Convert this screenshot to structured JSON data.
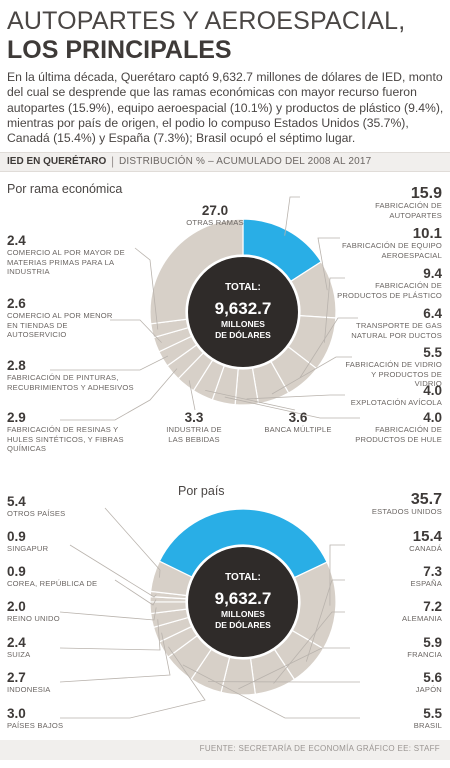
{
  "header": {
    "title_line1": "AUTOPARTES Y AEROESPACIAL,",
    "title_line2": "LOS PRINCIPALES",
    "intro": "En la última década, Querétaro captó 9,632.7 millones de dólares de IED, monto del cual se desprende que las ramas económicas con mayor recurso fueron autopartes (15.9%), equipo aeroespacial (10.1%) y productos de plástico (9.4%), mientras por país de origen, el podio lo compuso Estados Unidos (35.7%), Canadá (15.4%) y España (7.3%); Brasil ocupó el séptimo lugar."
  },
  "subheader": {
    "bold": "IED EN QUERÉTARO",
    "separator": "|",
    "rest": "DISTRIBUCIÓN % – ACUMULADO DEL 2008 AL 2017"
  },
  "colors": {
    "highlight": "#29aee6",
    "ring": "#d7d0c8",
    "center": "#2f2b29",
    "line": "#b9b3ad"
  },
  "chart_data": [
    {
      "type": "pie",
      "title": "Por rama económica",
      "center": {
        "label": "TOTAL:",
        "value": "9,632.7",
        "unit1": "MILLONES",
        "unit2": "DE DÓLARES"
      },
      "slices": [
        {
          "value": "15.9",
          "v": 15.9,
          "label": "FABRICACIÓN DE AUTOPARTES",
          "highlight": true
        },
        {
          "value": "10.1",
          "v": 10.1,
          "label": "FABRICACIÓN DE EQUIPO AEROESPACIAL"
        },
        {
          "value": "9.4",
          "v": 9.4,
          "label": "FABRICACIÓN DE PRODUCTOS DE PLÁSTICO"
        },
        {
          "value": "6.4",
          "v": 6.4,
          "label": "TRANSPORTE DE GAS NATURAL POR DUCTOS"
        },
        {
          "value": "5.5",
          "v": 5.5,
          "label": "FABRICACIÓN DE VIDRIO Y PRODUCTOS DE VIDRIO"
        },
        {
          "value": "4.0",
          "v": 4.0,
          "label": "EXPLOTACIÓN AVÍCOLA"
        },
        {
          "value": "4.0",
          "v": 4.0,
          "label": "FABRICACIÓN DE PRODUCTOS DE HULE"
        },
        {
          "value": "3.6",
          "v": 3.6,
          "label": "BANCA MÚLTIPLE"
        },
        {
          "value": "3.3",
          "v": 3.3,
          "label": "INDUSTRIA DE LAS BEBIDAS"
        },
        {
          "value": "2.9",
          "v": 2.9,
          "label": "FABRICACIÓN DE RESINAS Y HULES SINTÉTICOS, Y FIBRAS QUÍMICAS"
        },
        {
          "value": "2.8",
          "v": 2.8,
          "label": "FABRICACIÓN DE PINTURAS, RECUBRIMIENTOS Y ADHESIVOS"
        },
        {
          "value": "2.6",
          "v": 2.6,
          "label": "COMERCIO AL POR MENOR EN TIENDAS DE AUTOSERVICIO"
        },
        {
          "value": "2.4",
          "v": 2.4,
          "label": "COMERCIO AL POR MAYOR DE MATERIAS PRIMAS PARA LA INDUSTRIA"
        },
        {
          "value": "27.0",
          "v": 27.0,
          "label": "OTRAS RAMAS"
        }
      ]
    },
    {
      "type": "pie",
      "title": "Por país",
      "center": {
        "label": "TOTAL:",
        "value": "9,632.7",
        "unit1": "MILLONES",
        "unit2": "DE DÓLARES"
      },
      "slices": [
        {
          "value": "35.7",
          "v": 35.7,
          "label": "ESTADOS UNIDOS",
          "highlight": true
        },
        {
          "value": "15.4",
          "v": 15.4,
          "label": "CANADÁ"
        },
        {
          "value": "7.3",
          "v": 7.3,
          "label": "ESPAÑA"
        },
        {
          "value": "7.2",
          "v": 7.2,
          "label": "ALEMANIA"
        },
        {
          "value": "5.9",
          "v": 5.9,
          "label": "FRANCIA"
        },
        {
          "value": "5.6",
          "v": 5.6,
          "label": "JAPÓN"
        },
        {
          "value": "5.5",
          "v": 5.5,
          "label": "BRASIL"
        },
        {
          "value": "3.0",
          "v": 3.0,
          "label": "PAÍSES BAJOS"
        },
        {
          "value": "2.7",
          "v": 2.7,
          "label": "INDONESIA"
        },
        {
          "value": "2.4",
          "v": 2.4,
          "label": "SUIZA"
        },
        {
          "value": "2.0",
          "v": 2.0,
          "label": "REINO UNIDO"
        },
        {
          "value": "0.9",
          "v": 0.9,
          "label": "COREA, REPÚBLICA DE"
        },
        {
          "value": "0.9",
          "v": 0.9,
          "label": "SINGAPUR"
        },
        {
          "value": "5.4",
          "v": 5.4,
          "label": "OTROS PAÍSES"
        }
      ]
    }
  ],
  "footer": "FUENTE: SECRETARÍA DE ECONOMÍA   GRÁFICO EE: STAFF"
}
